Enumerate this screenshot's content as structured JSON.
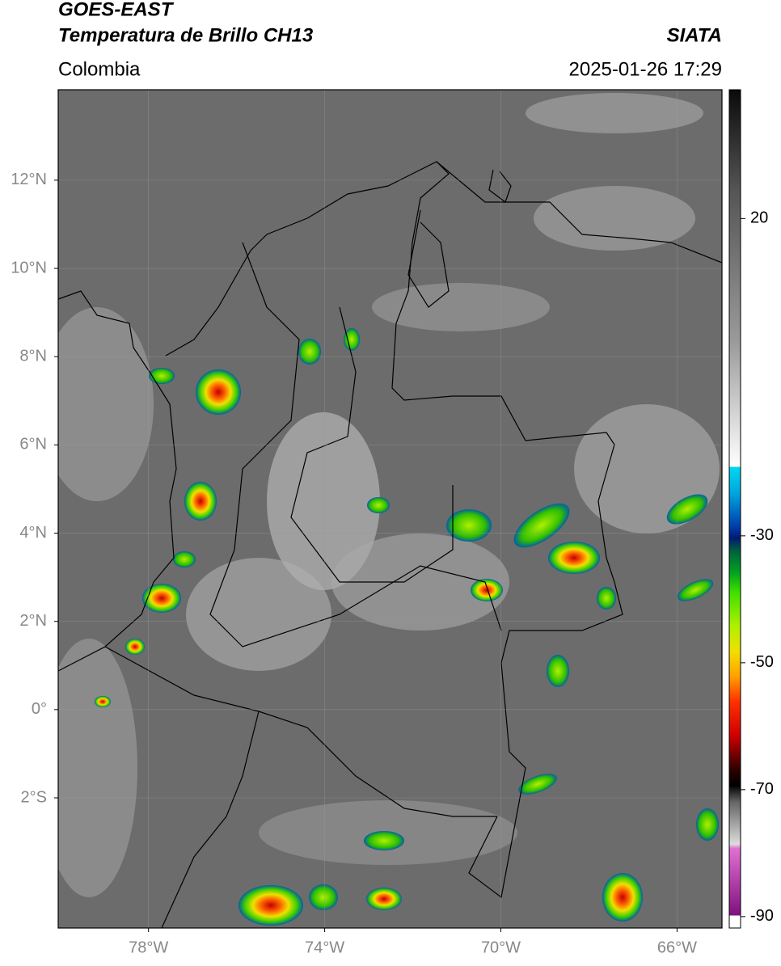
{
  "header": {
    "title": "GOES-EAST",
    "subtitle": "Temperatura de Brillo CH13",
    "source": "SIATA",
    "region": "Colombia",
    "datetime": "2025-01-26 17:29"
  },
  "map": {
    "xlim": [
      -80.05,
      -64.98
    ],
    "ylim": [
      -4.95,
      14.05
    ],
    "xticks": [
      {
        "value": -78,
        "label": "78°W"
      },
      {
        "value": -74,
        "label": "74°W"
      },
      {
        "value": -70,
        "label": "70°W"
      },
      {
        "value": -66,
        "label": "66°W"
      }
    ],
    "yticks": [
      {
        "value": 12,
        "label": "12°N"
      },
      {
        "value": 10,
        "label": "10°N"
      },
      {
        "value": 8,
        "label": "8°N"
      },
      {
        "value": 6,
        "label": "6°N"
      },
      {
        "value": 4,
        "label": "4°N"
      },
      {
        "value": 2,
        "label": "2°N"
      },
      {
        "value": 0,
        "label": "0°"
      },
      {
        "value": -2,
        "label": "2°S"
      }
    ]
  },
  "colorbar": {
    "ylim": [
      -91.8,
      40.3
    ],
    "ticks": [
      20,
      -30,
      -50,
      -70,
      -90
    ]
  }
}
